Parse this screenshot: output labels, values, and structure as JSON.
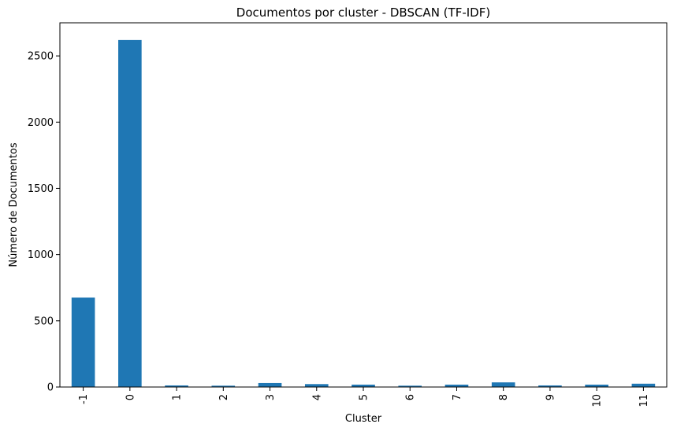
{
  "chart_data": {
    "type": "bar",
    "title": "Documentos por cluster - DBSCAN (TF-IDF)",
    "xlabel": "Cluster",
    "ylabel": "Número de Documentos",
    "categories": [
      "-1",
      "0",
      "1",
      "2",
      "3",
      "4",
      "5",
      "6",
      "7",
      "8",
      "9",
      "10",
      "11"
    ],
    "values": [
      675,
      2620,
      12,
      10,
      30,
      22,
      18,
      10,
      18,
      35,
      12,
      18,
      25
    ],
    "ylim": [
      0,
      2750
    ],
    "yticks": [
      0,
      500,
      1000,
      1500,
      2000,
      2500
    ],
    "ytick_labels": [
      "0",
      "500",
      "1000",
      "1500",
      "2000",
      "2500"
    ],
    "grid": false,
    "bar_color": "#1f77b4",
    "x_tick_rotation": "vertical"
  }
}
